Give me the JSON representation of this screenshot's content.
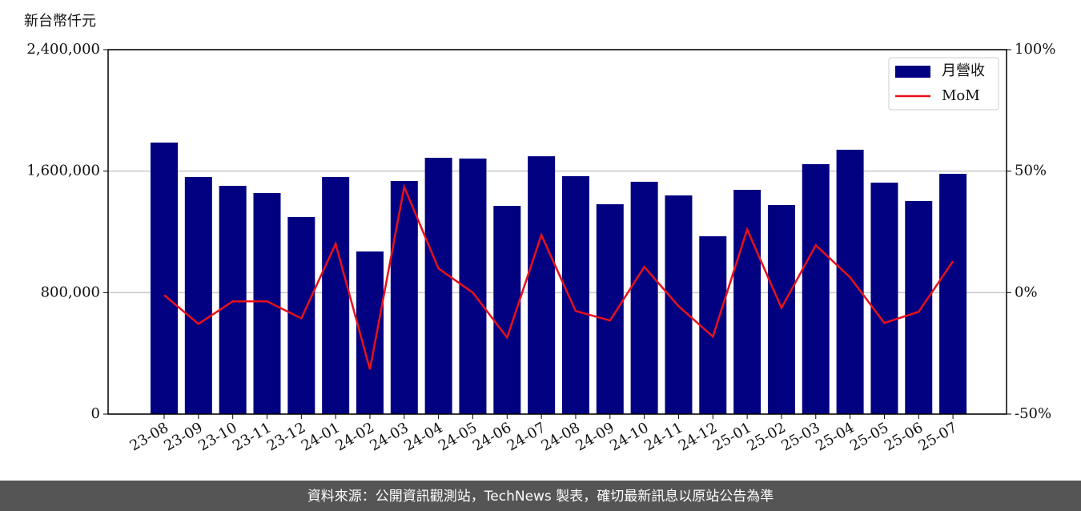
{
  "chart_data": {
    "type": "bar_line",
    "unit_label": "新台幣仟元",
    "footer": "資料來源：公開資訊觀測站，TechNews 製表，確切最新訊息以原站公告為準",
    "categories": [
      "23-08",
      "23-09",
      "23-10",
      "23-11",
      "23-12",
      "24-01",
      "24-02",
      "24-03",
      "24-04",
      "24-05",
      "24-06",
      "24-07",
      "24-08",
      "24-09",
      "24-10",
      "24-11",
      "24-12",
      "25-01",
      "25-02",
      "25-03",
      "25-04",
      "25-05",
      "25-06",
      "25-07"
    ],
    "series": [
      {
        "name": "月營收",
        "type": "bar",
        "color": "#000080",
        "values": [
          1788000,
          1561000,
          1503000,
          1456000,
          1298000,
          1561000,
          1071000,
          1535000,
          1688000,
          1683000,
          1371000,
          1698000,
          1567000,
          1382000,
          1530000,
          1440000,
          1171000,
          1477000,
          1377000,
          1646000,
          1741000,
          1524000,
          1403000,
          1582000
        ]
      },
      {
        "name": "MoM",
        "type": "line",
        "axis": "y2",
        "color": "#e8101a",
        "values": [
          -1,
          -12.9,
          -3.6,
          -3.6,
          -10.6,
          20.1,
          -31.6,
          43.5,
          9.9,
          0,
          -18.5,
          23.7,
          -7.6,
          -11.5,
          10.6,
          -5.6,
          -18.1,
          26.0,
          -6.3,
          19.5,
          6.3,
          -12.5,
          -7.9,
          12.9
        ]
      }
    ],
    "ylim": [
      0,
      2400000
    ],
    "yticks": [
      0,
      {
        "value": 800000,
        "label": "800,000"
      },
      {
        "value": 1600000,
        "label": "1,600,000"
      },
      {
        "value": 2400000,
        "label": "2,400,000"
      }
    ],
    "y2lim": [
      -50,
      100
    ],
    "y2ticks": [
      {
        "value": -50,
        "label": "-50%"
      },
      {
        "value": 0,
        "label": "0%"
      },
      {
        "value": 50,
        "label": "50%"
      },
      {
        "value": 100,
        "label": "100%"
      }
    ],
    "grid": true,
    "legend": "upper right"
  }
}
